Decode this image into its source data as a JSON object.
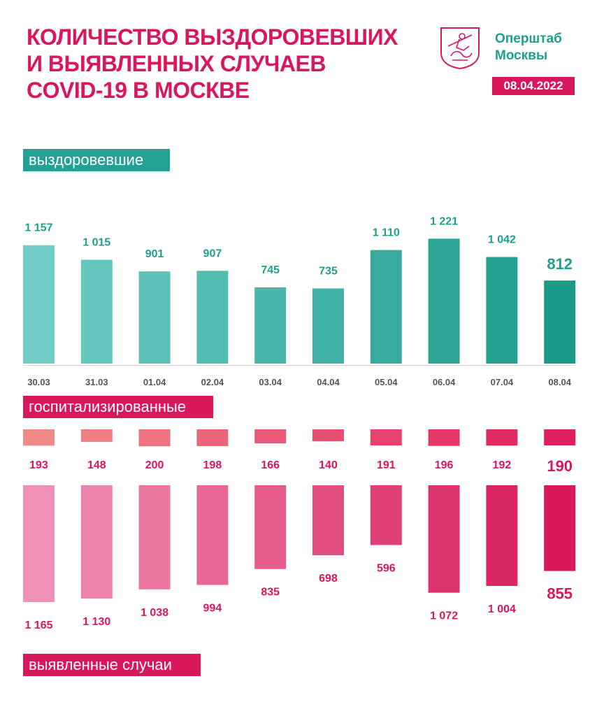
{
  "header": {
    "title_lines": [
      "Количество выздоровевших",
      "и выявленных случаев",
      "COVID-19 в Москве"
    ],
    "org_lines": [
      "Оперштаб",
      "Москвы"
    ],
    "date": "08.04.2022",
    "logo": "moscow-coat-of-arms-icon"
  },
  "sections": {
    "recovered": "выздоровевшие",
    "hospitalized": "госпитализированные",
    "cases": "выявленные случаи"
  },
  "colors": {
    "accent_red": "#d8175c",
    "accent_teal": "#23a293"
  },
  "chart_data": [
    {
      "type": "bar",
      "name": "выздоровевшие",
      "categories": [
        "30.03",
        "31.03",
        "01.04",
        "02.04",
        "03.04",
        "04.04",
        "05.04",
        "06.04",
        "07.04",
        "08.04"
      ],
      "values": [
        1157,
        1015,
        901,
        907,
        745,
        735,
        1110,
        1221,
        1042,
        812
      ],
      "value_labels": [
        "1 157",
        "1 015",
        "901",
        "907",
        "745",
        "735",
        "1 110",
        "1 221",
        "1 042",
        "812"
      ],
      "color_from": "#6fcdc5",
      "color_to": "#1b9a8a"
    },
    {
      "type": "bar",
      "name": "госпитализированные",
      "categories": [
        "30.03",
        "31.03",
        "01.04",
        "02.04",
        "03.04",
        "04.04",
        "05.04",
        "06.04",
        "07.04",
        "08.04"
      ],
      "values": [
        193,
        148,
        200,
        198,
        166,
        140,
        191,
        196,
        192,
        190
      ],
      "value_labels": [
        "193",
        "148",
        "200",
        "198",
        "166",
        "140",
        "191",
        "196",
        "192",
        "190"
      ],
      "color_from": "#f08a86",
      "color_to": "#df1f5f"
    },
    {
      "type": "bar",
      "name": "выявленные случаи",
      "categories": [
        "30.03",
        "31.03",
        "01.04",
        "02.04",
        "03.04",
        "04.04",
        "05.04",
        "06.04",
        "07.04",
        "08.04"
      ],
      "values": [
        1165,
        1130,
        1038,
        994,
        835,
        698,
        596,
        1072,
        1004,
        855
      ],
      "value_labels": [
        "1 165",
        "1 130",
        "1 038",
        "994",
        "835",
        "698",
        "596",
        "1 072",
        "1 004",
        "855"
      ],
      "color_from": "#ef91b6",
      "color_to": "#d8175c"
    }
  ]
}
